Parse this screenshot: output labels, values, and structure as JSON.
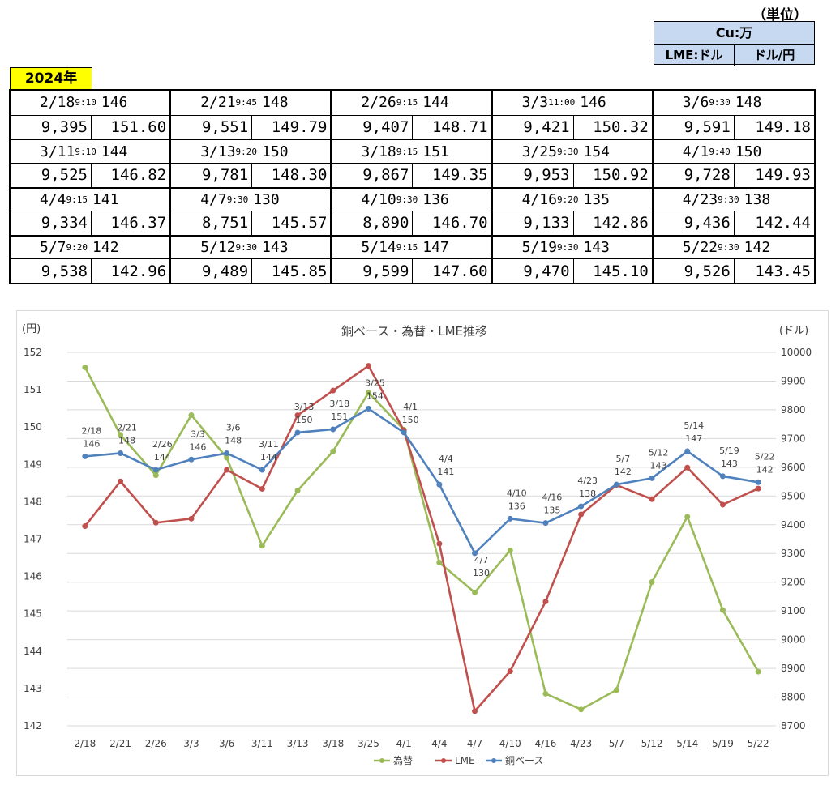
{
  "unit": {
    "label": "（単位）",
    "cu": "Cu:万",
    "lme": "LME:ドル",
    "fx": "ドル/円"
  },
  "year": "2024年",
  "table": [
    {
      "date": "2/18",
      "time": "9:10",
      "base": "146",
      "lme": "9,395",
      "fx": "151.60"
    },
    {
      "date": "2/21",
      "time": "9:45",
      "base": "148",
      "lme": "9,551",
      "fx": "149.79"
    },
    {
      "date": "2/26",
      "time": "9:15",
      "base": "144",
      "lme": "9,407",
      "fx": "148.71"
    },
    {
      "date": "3/3",
      "time": "11:00",
      "base": "146",
      "lme": "9,421",
      "fx": "150.32"
    },
    {
      "date": "3/6",
      "time": "9:30",
      "base": "148",
      "lme": "9,591",
      "fx": "149.18"
    },
    {
      "date": "3/11",
      "time": "9:10",
      "base": "144",
      "lme": "9,525",
      "fx": "146.82"
    },
    {
      "date": "3/13",
      "time": "9:20",
      "base": "150",
      "lme": "9,781",
      "fx": "148.30"
    },
    {
      "date": "3/18",
      "time": "9:15",
      "base": "151",
      "lme": "9,867",
      "fx": "149.35"
    },
    {
      "date": "3/25",
      "time": "9:30",
      "base": "154",
      "lme": "9,953",
      "fx": "150.92"
    },
    {
      "date": "4/1",
      "time": "9:40",
      "base": "150",
      "lme": "9,728",
      "fx": "149.93"
    },
    {
      "date": "4/4",
      "time": "9:15",
      "base": "141",
      "lme": "9,334",
      "fx": "146.37"
    },
    {
      "date": "4/7",
      "time": "9:30",
      "base": "130",
      "lme": "8,751",
      "fx": "145.57"
    },
    {
      "date": "4/10",
      "time": "9:30",
      "base": "136",
      "lme": "8,890",
      "fx": "146.70"
    },
    {
      "date": "4/16",
      "time": "9:20",
      "base": "135",
      "lme": "9,133",
      "fx": "142.86"
    },
    {
      "date": "4/23",
      "time": "9:30",
      "base": "138",
      "lme": "9,436",
      "fx": "142.44"
    },
    {
      "date": "5/7",
      "time": "9:20",
      "base": "142",
      "lme": "9,538",
      "fx": "142.96"
    },
    {
      "date": "5/12",
      "time": "9:30",
      "base": "143",
      "lme": "9,489",
      "fx": "145.85"
    },
    {
      "date": "5/14",
      "time": "9:15",
      "base": "147",
      "lme": "9,599",
      "fx": "147.60"
    },
    {
      "date": "5/19",
      "time": "9:30",
      "base": "143",
      "lme": "9,470",
      "fx": "145.10"
    },
    {
      "date": "5/22",
      "time": "9:30",
      "base": "142",
      "lme": "9,526",
      "fx": "143.45"
    }
  ],
  "chart_data": {
    "type": "line",
    "title": "銅ベース・為替・LME推移",
    "ylabel_left": "(円)",
    "ylabel_right": "(ドル)",
    "categories": [
      "2/18",
      "2/21",
      "2/26",
      "3/3",
      "3/6",
      "3/11",
      "3/13",
      "3/18",
      "3/25",
      "4/1",
      "4/4",
      "4/7",
      "4/10",
      "4/16",
      "4/23",
      "5/7",
      "5/12",
      "5/14",
      "5/19",
      "5/22"
    ],
    "ylim_left": [
      142,
      152
    ],
    "ylim_right": [
      8700,
      10000
    ],
    "yticks_left": [
      142,
      143,
      144,
      145,
      146,
      147,
      148,
      149,
      150,
      151,
      152
    ],
    "yticks_right": [
      8700,
      8800,
      8900,
      9000,
      9100,
      9200,
      9300,
      9400,
      9500,
      9600,
      9700,
      9800,
      9900,
      10000
    ],
    "grid": true,
    "legend": "bottom",
    "series": [
      {
        "name": "為替",
        "axis": "left",
        "color": "#9bbb59",
        "values": [
          151.6,
          149.79,
          148.71,
          150.32,
          149.18,
          146.82,
          148.3,
          149.35,
          150.92,
          149.93,
          146.37,
          145.57,
          146.7,
          142.86,
          142.44,
          142.96,
          145.85,
          147.6,
          145.1,
          143.45
        ]
      },
      {
        "name": "LME",
        "axis": "right",
        "color": "#c0504d",
        "values": [
          9395,
          9551,
          9407,
          9421,
          9591,
          9525,
          9781,
          9867,
          9953,
          9728,
          9334,
          8751,
          8890,
          9133,
          9436,
          9538,
          9489,
          9599,
          9470,
          9526
        ]
      },
      {
        "name": "銅ベース",
        "axis": "right",
        "color": "#4f81bd",
        "values": [
          9638,
          9649,
          9591,
          9627,
          9649,
          9591,
          9721,
          9732,
          9804,
          9721,
          9540,
          9301,
          9421,
          9406,
          9464,
          9540,
          9562,
          9656,
          9569,
          9548
        ]
      }
    ],
    "annotations": [
      {
        "date": "2/18",
        "value": "146"
      },
      {
        "date": "2/21",
        "value": "148"
      },
      {
        "date": "2/26",
        "value": "144"
      },
      {
        "date": "3/3",
        "value": "146"
      },
      {
        "date": "3/6",
        "value": "148"
      },
      {
        "date": "3/11",
        "value": "144"
      },
      {
        "date": "3/13",
        "value": "150"
      },
      {
        "date": "3/18",
        "value": "151"
      },
      {
        "date": "3/25",
        "value": "154"
      },
      {
        "date": "4/1",
        "value": "150"
      },
      {
        "date": "4/4",
        "value": "141"
      },
      {
        "date": "4/7",
        "value": "130"
      },
      {
        "date": "4/10",
        "value": "136"
      },
      {
        "date": "4/16",
        "value": "135"
      },
      {
        "date": "4/23",
        "value": "138"
      },
      {
        "date": "5/7",
        "value": "142"
      },
      {
        "date": "5/12",
        "value": "143"
      },
      {
        "date": "5/14",
        "value": "147"
      },
      {
        "date": "5/19",
        "value": "143"
      },
      {
        "date": "5/22",
        "value": "142"
      }
    ]
  }
}
